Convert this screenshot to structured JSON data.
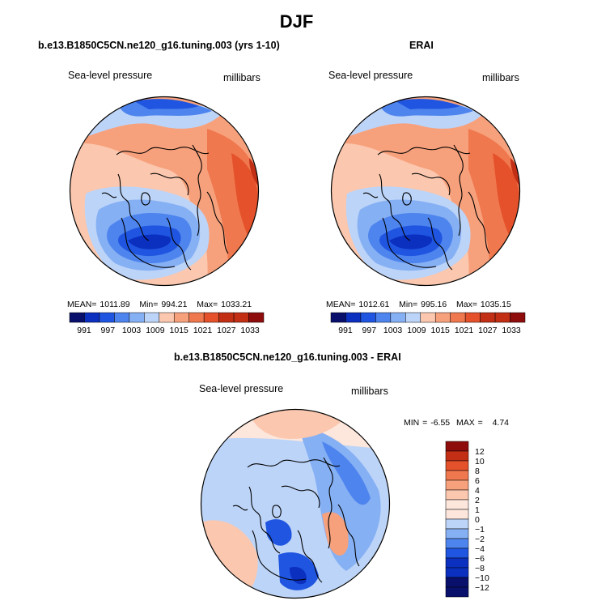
{
  "figure": {
    "title": "DJF",
    "colors": {
      "d1": "#08106b",
      "d2": "#0b2fbf",
      "d3": "#1f55e0",
      "d4": "#4e84ee",
      "d5": "#86b0f4",
      "d6": "#bcd4f8",
      "neutral": "#fde6dc",
      "w1": "#fbc7ae",
      "w2": "#f7a17c",
      "w3": "#f0784e",
      "w4": "#e4512a",
      "w5": "#c32f15",
      "w6": "#8e0c0c",
      "coast": "#000000"
    }
  },
  "chart_data": [
    {
      "type": "heatmap",
      "title": "b.e13.B1850C5CN.ne120_g16.tuning.003 (yrs 1-10)",
      "left_label": "Sea-level pressure",
      "right_label": "millibars",
      "projection": "north-polar stereographic",
      "stats": {
        "mean_label": "MEAN=",
        "mean": "1011.89",
        "min_label": "Min=",
        "min": "994.21",
        "max_label": "Max=",
        "max": "1033.21"
      },
      "colorbar": {
        "levels": [
          991,
          997,
          1003,
          1009,
          1015,
          1021,
          1027,
          1033
        ],
        "units": "millibars"
      }
    },
    {
      "type": "heatmap",
      "title": "ERAI",
      "left_label": "Sea-level pressure",
      "right_label": "millibars",
      "projection": "north-polar stereographic",
      "stats": {
        "mean_label": "MEAN=",
        "mean": "1012.61",
        "min_label": "Min=",
        "min": "995.16",
        "max_label": "Max=",
        "max": "1035.15"
      },
      "colorbar": {
        "levels": [
          991,
          997,
          1003,
          1009,
          1015,
          1021,
          1027,
          1033
        ],
        "units": "millibars"
      }
    },
    {
      "type": "heatmap",
      "title": "b.e13.B1850C5CN.ne120_g16.tuning.003 - ERAI",
      "left_label": "Sea-level pressure",
      "right_label": "millibars",
      "projection": "north-polar stereographic",
      "stats": {
        "min_label": "MIN =",
        "min": "-6.55",
        "max_label": "MAX =",
        "max": "4.74"
      },
      "colorbar": {
        "levels": [
          12,
          10,
          8,
          6,
          4,
          2,
          1,
          0,
          -1,
          -2,
          -4,
          -6,
          -8,
          -10,
          -12
        ],
        "units": "millibars"
      }
    }
  ]
}
